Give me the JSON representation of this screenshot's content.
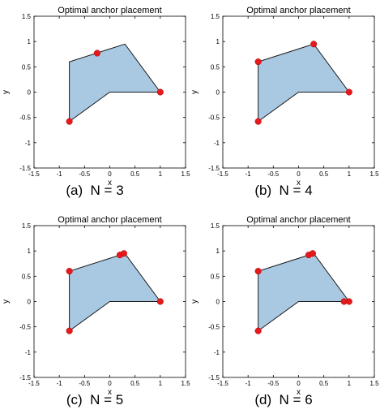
{
  "chart_data": [
    {
      "type": "scatter",
      "title": "Optimal anchor placement",
      "caption": "(a)  N = 3",
      "xlabel": "x",
      "ylabel": "y",
      "xlim": [
        -1.5,
        1.5
      ],
      "ylim": [
        -1.5,
        1.5
      ],
      "xticks": [
        "-1.5",
        "-1",
        "-0.5",
        "0",
        "0.5",
        "1",
        "1.5"
      ],
      "yticks": [
        "1.5",
        "1",
        "0.5",
        "0",
        "-0.5",
        "-1",
        "-1.5"
      ],
      "grid": false,
      "region": [
        [
          -0.8,
          -0.58
        ],
        [
          -0.8,
          0.6
        ],
        [
          0.3,
          0.95
        ],
        [
          1.0,
          0.0
        ],
        [
          0.0,
          0.0
        ],
        [
          -0.8,
          -0.58
        ]
      ],
      "region_color": "#a9c9e3",
      "marker_color": "#e41a1c",
      "points": [
        [
          -0.8,
          -0.58
        ],
        [
          -0.25,
          0.77
        ],
        [
          1.0,
          0.0
        ]
      ]
    },
    {
      "type": "scatter",
      "title": "Optimal anchor placement",
      "caption": "(b)  N = 4",
      "xlabel": "x",
      "ylabel": "y",
      "xlim": [
        -1.5,
        1.5
      ],
      "ylim": [
        -1.5,
        1.5
      ],
      "xticks": [
        "-1.5",
        "-1",
        "-0.5",
        "0",
        "0.5",
        "1",
        "1.5"
      ],
      "yticks": [
        "1.5",
        "1",
        "0.5",
        "0",
        "-0.5",
        "-1",
        "-1.5"
      ],
      "grid": false,
      "region": [
        [
          -0.8,
          -0.58
        ],
        [
          -0.8,
          0.6
        ],
        [
          0.3,
          0.95
        ],
        [
          1.0,
          0.0
        ],
        [
          0.0,
          0.0
        ],
        [
          -0.8,
          -0.58
        ]
      ],
      "region_color": "#a9c9e3",
      "marker_color": "#e41a1c",
      "points": [
        [
          -0.8,
          -0.58
        ],
        [
          -0.8,
          0.6
        ],
        [
          0.3,
          0.95
        ],
        [
          1.0,
          0.0
        ]
      ]
    },
    {
      "type": "scatter",
      "title": "Optimal anchor placement",
      "caption": "(c)  N = 5",
      "xlabel": "x",
      "ylabel": "y",
      "xlim": [
        -1.5,
        1.5
      ],
      "ylim": [
        -1.5,
        1.5
      ],
      "xticks": [
        "-1.5",
        "-1",
        "-0.5",
        "0",
        "0.5",
        "1",
        "1.5"
      ],
      "yticks": [
        "1.5",
        "1",
        "0.5",
        "0",
        "-0.5",
        "-1",
        "-1.5"
      ],
      "grid": false,
      "region": [
        [
          -0.8,
          -0.58
        ],
        [
          -0.8,
          0.6
        ],
        [
          0.3,
          0.95
        ],
        [
          1.0,
          0.0
        ],
        [
          0.0,
          0.0
        ],
        [
          -0.8,
          -0.58
        ]
      ],
      "region_color": "#a9c9e3",
      "marker_color": "#e41a1c",
      "points": [
        [
          -0.8,
          -0.58
        ],
        [
          -0.8,
          0.6
        ],
        [
          0.2,
          0.92
        ],
        [
          0.28,
          0.95
        ],
        [
          1.0,
          0.0
        ]
      ]
    },
    {
      "type": "scatter",
      "title": "Optimal anchor placement",
      "caption": "(d)  N = 6",
      "xlabel": "x",
      "ylabel": "y",
      "xlim": [
        -1.5,
        1.5
      ],
      "ylim": [
        -1.5,
        1.5
      ],
      "xticks": [
        "-1.5",
        "-1",
        "-0.5",
        "0",
        "0.5",
        "1",
        "1.5"
      ],
      "yticks": [
        "1.5",
        "1",
        "0.5",
        "0",
        "-0.5",
        "-1",
        "-1.5"
      ],
      "grid": false,
      "region": [
        [
          -0.8,
          -0.58
        ],
        [
          -0.8,
          0.6
        ],
        [
          0.3,
          0.95
        ],
        [
          1.0,
          0.0
        ],
        [
          0.0,
          0.0
        ],
        [
          -0.8,
          -0.58
        ]
      ],
      "region_color": "#a9c9e3",
      "marker_color": "#e41a1c",
      "points": [
        [
          -0.8,
          -0.58
        ],
        [
          -0.8,
          0.6
        ],
        [
          0.2,
          0.92
        ],
        [
          0.28,
          0.95
        ],
        [
          0.9,
          0.0
        ],
        [
          1.0,
          0.0
        ]
      ]
    }
  ]
}
